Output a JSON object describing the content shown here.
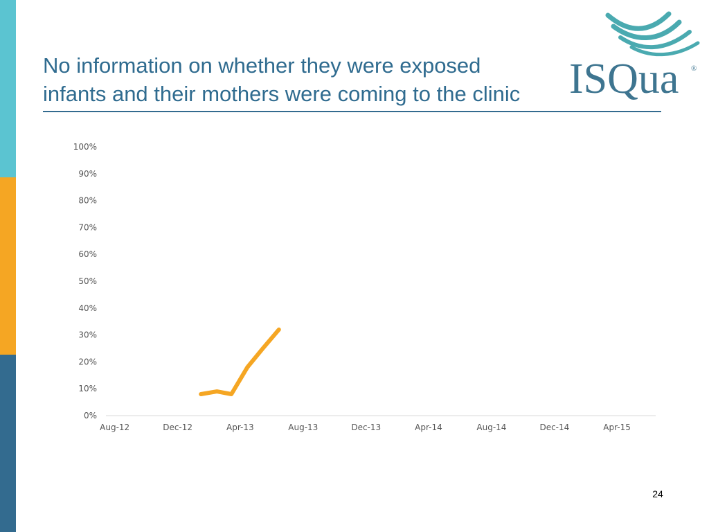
{
  "colors": {
    "sidebar_top": "#5bc4d1",
    "sidebar_middle": "#f5a623",
    "sidebar_bottom": "#336b8f",
    "title": "#2f6b8f",
    "title_rule": "#336b8f",
    "series_line": "#f5a623",
    "logo_wave": "#4aaab0",
    "logo_text": "#3e7590"
  },
  "slide": {
    "title_line1": "No information on whether they were exposed",
    "title_line2": "infants and their mothers were coming to the clinic",
    "page_number": "24"
  },
  "logo": {
    "text": "ISQua",
    "registered": "®"
  },
  "chart_data": {
    "type": "line",
    "title": "",
    "xlabel": "",
    "ylabel": "",
    "x_tick_labels": [
      "Aug-12",
      "Dec-12",
      "Apr-13",
      "Aug-13",
      "Dec-13",
      "Apr-14",
      "Aug-14",
      "Dec-14",
      "Apr-15"
    ],
    "y_tick_labels": [
      "0%",
      "10%",
      "20%",
      "30%",
      "40%",
      "50%",
      "60%",
      "70%",
      "80%",
      "90%",
      "100%"
    ],
    "xlim": [
      "2012-07-15",
      "2015-06-15"
    ],
    "ylim": [
      0,
      100
    ],
    "grid": false,
    "legend": "none",
    "series": [
      {
        "x": [
          "2013-01-15",
          "2013-02-15",
          "2013-03-15",
          "2013-04-15",
          "2013-05-15",
          "2013-06-15"
        ],
        "values": [
          8,
          9,
          8,
          18,
          25,
          32
        ]
      }
    ]
  }
}
